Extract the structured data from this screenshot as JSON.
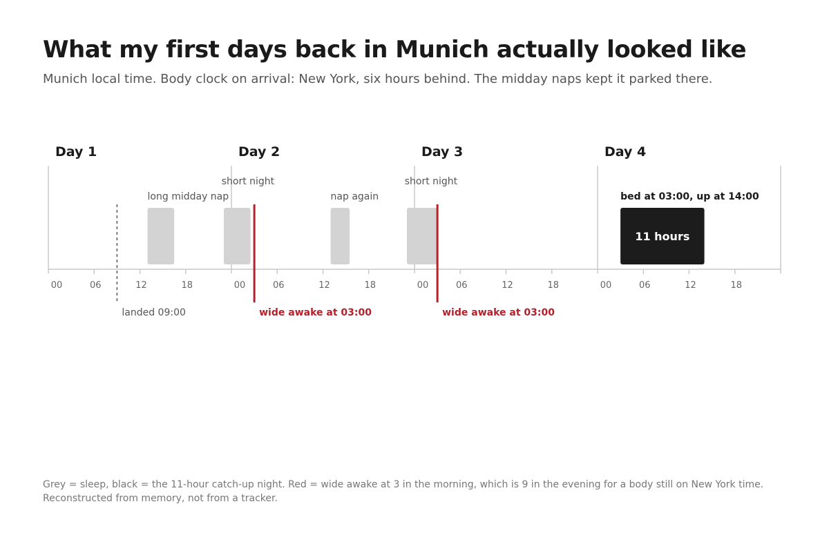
{
  "header": {
    "title": "What my first days back in Munich actually looked like",
    "subtitle": "Munich local time. Body clock on arrival: New York, six hours behind. The midday naps kept it parked there."
  },
  "chart_data": {
    "type": "timeline",
    "title": "What my first days back in Munich actually looked like",
    "subtitle": "Munich local time. Body clock on arrival: New York, six hours behind. The midday naps kept it parked there.",
    "days": [
      "Day 1",
      "Day 2",
      "Day 3",
      "Day 4"
    ],
    "hours_per_day": 24,
    "tick_hours": [
      0,
      6,
      12,
      18
    ],
    "tick_labels": [
      "00",
      "06",
      "12",
      "18"
    ],
    "sleep_blocks": [
      {
        "day": 1,
        "start": 13,
        "end": 16.5,
        "kind": "nap",
        "label": "long midday nap"
      },
      {
        "day": 1,
        "start": 23,
        "end": 26.5,
        "kind": "night",
        "label": "short night"
      },
      {
        "day": 2,
        "start": 13,
        "end": 15.5,
        "kind": "nap",
        "label": "nap again"
      },
      {
        "day": 2,
        "start": 23,
        "end": 27,
        "kind": "night",
        "label": "short night"
      },
      {
        "day": 4,
        "start": 3,
        "end": 14,
        "kind": "catch-up",
        "label": "bed at 03:00, up at 14:00",
        "inner_label": "11 hours"
      }
    ],
    "events": [
      {
        "day": 1,
        "hour": 9,
        "style": "dashed",
        "label": "landed 09:00"
      },
      {
        "day": 2,
        "hour": 3,
        "style": "red",
        "label": "wide awake at 03:00"
      },
      {
        "day": 3,
        "hour": 3,
        "style": "red",
        "label": "wide awake at 03:00"
      }
    ],
    "colors": {
      "sleep": "#d3d3d3",
      "catch_up": "#1c1c1c",
      "awake": "#b5202b",
      "axis": "#c8c8c8",
      "event_dashed": "#555555"
    }
  },
  "footnote": {
    "line1": "Grey = sleep, black = the 11-hour catch-up night. Red = wide awake at 3 in the morning, which is 9 in the evening for a body still on New York time.",
    "line2": "Reconstructed from memory, not from a tracker."
  }
}
